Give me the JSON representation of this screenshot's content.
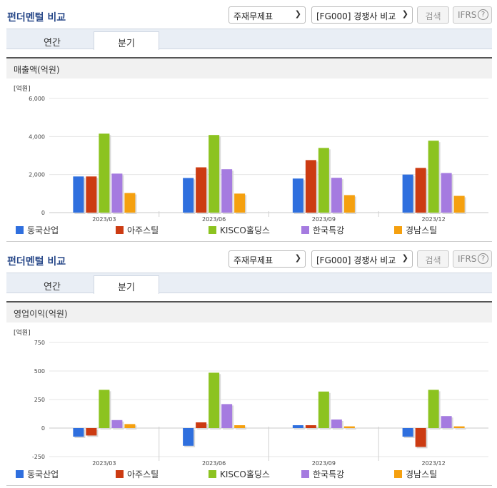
{
  "panels": [
    {
      "title": "펀더멘털 비교",
      "select_statement": "주재무제표",
      "select_compare": "[FG000] 경쟁사 비교",
      "search_label": "검색",
      "ifrs_label": "IFRS",
      "help_label": "?",
      "tabs": [
        {
          "label": "연간"
        },
        {
          "label": "분기"
        }
      ],
      "active_tab": "분기",
      "chart_title": "매출액(억원)"
    },
    {
      "title": "펀더멘털 비교",
      "select_statement": "주재무제표",
      "select_compare": "[FG000] 경쟁사 비교",
      "search_label": "검색",
      "ifrs_label": "IFRS",
      "help_label": "?",
      "tabs": [
        {
          "label": "연간"
        },
        {
          "label": "분기"
        }
      ],
      "active_tab": "분기",
      "chart_title": "영업이익(억원)"
    }
  ],
  "chart_data": [
    {
      "type": "bar",
      "title": "매출액(억원)",
      "unit_label": "[억원]",
      "categories": [
        "2023/03",
        "2023/06",
        "2023/09",
        "2023/12"
      ],
      "yticks": [
        "6,000",
        "4,000",
        "2,000",
        "0"
      ],
      "ylim": [
        0,
        6000
      ],
      "series": [
        {
          "name": "동국산업",
          "color": "#2f6fde",
          "values": [
            1900,
            1820,
            1790,
            2000
          ]
        },
        {
          "name": "아주스틸",
          "color": "#cc3b12",
          "values": [
            1900,
            2380,
            2760,
            2350
          ]
        },
        {
          "name": "KISCO홀딩스",
          "color": "#8cc320",
          "values": [
            4150,
            4080,
            3400,
            3780
          ]
        },
        {
          "name": "한국특강",
          "color": "#a57be0",
          "values": [
            2050,
            2280,
            1830,
            2080
          ]
        },
        {
          "name": "경남스틸",
          "color": "#f5a00f",
          "values": [
            1030,
            1000,
            920,
            880
          ]
        }
      ],
      "grid": true,
      "legend_position": "bottom"
    },
    {
      "type": "bar",
      "title": "영업이익(억원)",
      "unit_label": "[억원]",
      "categories": [
        "2023/03",
        "2023/06",
        "2023/09",
        "2023/12"
      ],
      "yticks": [
        "750",
        "500",
        "250",
        "0",
        "-250"
      ],
      "ylim": [
        -250,
        750
      ],
      "series": [
        {
          "name": "동국산업",
          "color": "#2f6fde",
          "values": [
            -75,
            -155,
            25,
            -75
          ]
        },
        {
          "name": "아주스틸",
          "color": "#cc3b12",
          "values": [
            -65,
            50,
            25,
            -165
          ]
        },
        {
          "name": "KISCO홀딩스",
          "color": "#8cc320",
          "values": [
            335,
            485,
            320,
            335
          ]
        },
        {
          "name": "한국특강",
          "color": "#a57be0",
          "values": [
            70,
            210,
            75,
            105
          ]
        },
        {
          "name": "경남스틸",
          "color": "#f5a00f",
          "values": [
            35,
            25,
            15,
            15
          ]
        }
      ],
      "grid": true,
      "legend_position": "bottom"
    }
  ]
}
